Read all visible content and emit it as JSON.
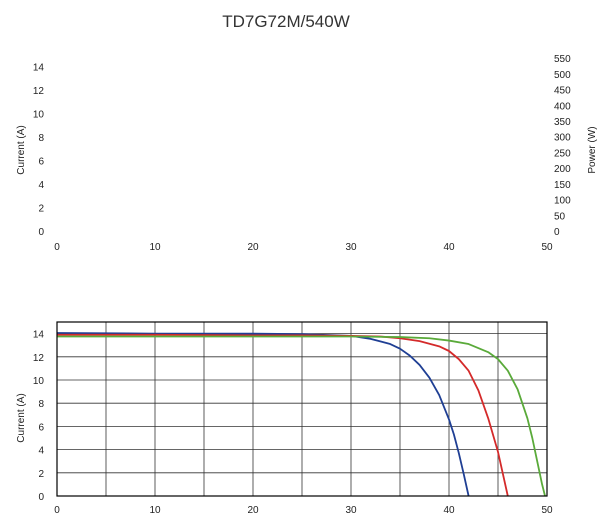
{
  "chart_data": [
    {
      "type": "line",
      "title": "TD7G72M/540W",
      "ylabel": "Current (A)",
      "y2label": "Power (W)",
      "xlim": [
        0,
        50
      ],
      "ylim": [
        0,
        15
      ],
      "y2lim": [
        0,
        560
      ],
      "x_ticks": [
        0,
        10,
        20,
        30,
        40,
        50
      ],
      "y_ticks": [
        0,
        2,
        4,
        6,
        8,
        10,
        12,
        14
      ],
      "y2_ticks": [
        0,
        50,
        100,
        150,
        200,
        250,
        300,
        350,
        400,
        450,
        500,
        550
      ],
      "grid": false,
      "series": []
    },
    {
      "type": "line",
      "ylabel": "Current (A)",
      "xlim": [
        0,
        50
      ],
      "ylim": [
        0,
        15
      ],
      "x_ticks": [
        0,
        10,
        20,
        30,
        40,
        50
      ],
      "y_ticks": [
        0,
        2,
        4,
        6,
        8,
        10,
        12,
        14
      ],
      "grid": true,
      "series": [
        {
          "color": "#1f3f94",
          "x": [
            0,
            10,
            20,
            25,
            30,
            32,
            34,
            35,
            36,
            37,
            38,
            39,
            40,
            40.5,
            41,
            41.5,
            42
          ],
          "y": [
            14.05,
            14.0,
            14.0,
            13.95,
            13.8,
            13.55,
            13.1,
            12.7,
            12.1,
            11.3,
            10.2,
            8.7,
            6.6,
            5.3,
            3.7,
            1.9,
            0
          ]
        },
        {
          "color": "#d42a2a",
          "x": [
            0,
            10,
            20,
            25,
            30,
            33,
            35,
            37,
            39,
            40,
            41,
            42,
            43,
            44,
            45,
            45.5,
            46
          ],
          "y": [
            13.9,
            13.9,
            13.85,
            13.85,
            13.8,
            13.75,
            13.6,
            13.35,
            12.9,
            12.5,
            11.8,
            10.8,
            9.1,
            6.7,
            3.8,
            1.9,
            0
          ]
        },
        {
          "color": "#5aaa3a",
          "x": [
            0,
            10,
            20,
            30,
            35,
            38,
            40,
            42,
            44,
            45,
            46,
            47,
            48,
            48.5,
            49,
            49.5,
            49.8
          ],
          "y": [
            13.75,
            13.75,
            13.75,
            13.75,
            13.7,
            13.6,
            13.4,
            13.1,
            12.4,
            11.8,
            10.8,
            9.2,
            6.7,
            5.0,
            3.0,
            1.0,
            0
          ]
        }
      ]
    }
  ]
}
